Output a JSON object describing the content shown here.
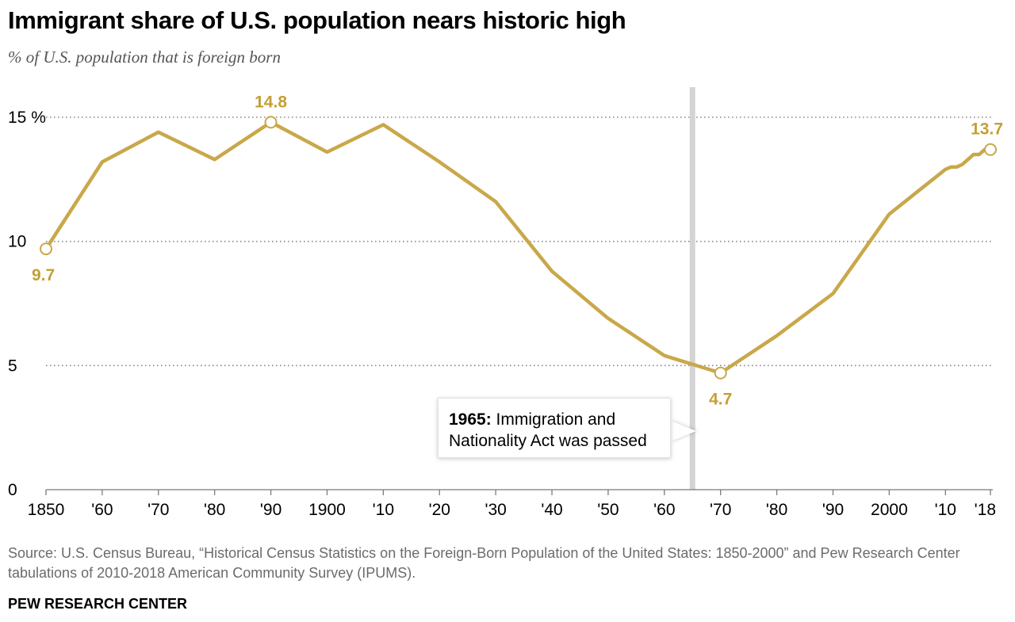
{
  "title": "Immigrant share of U.S. population nears historic high",
  "subtitle": "% of U.S. population that is foreign born",
  "source": "Source: U.S. Census Bureau, “Historical Census Statistics on the Foreign-Born Population of the United States: 1850-2000” and Pew Research Center tabulations of 2010-2018 American Community Survey (IPUMS).",
  "brand": "PEW RESEARCH CENTER",
  "annotation": {
    "year": "1965:",
    "text": " Immigration and Nationality Act was passed"
  },
  "colors": {
    "line": "#c9a84a",
    "label": "#c49f37",
    "grid": "#8a8a8a",
    "event_bar": "#d4d4d4",
    "axis_text": "#000000"
  },
  "chart_data": {
    "type": "line",
    "title": "Immigrant share of U.S. population nears historic high",
    "subtitle": "% of U.S. population that is foreign born",
    "xlabel": "",
    "ylabel": "",
    "ylim": [
      0,
      15
    ],
    "xlim": [
      1850,
      2018
    ],
    "grid": true,
    "y_ticks": [
      {
        "value": 0,
        "label": "0"
      },
      {
        "value": 5,
        "label": "5"
      },
      {
        "value": 10,
        "label": "10"
      },
      {
        "value": 15,
        "label": "15 %"
      }
    ],
    "x_ticks": [
      {
        "value": 1850,
        "label": "1850"
      },
      {
        "value": 1860,
        "label": "'60"
      },
      {
        "value": 1870,
        "label": "'70"
      },
      {
        "value": 1880,
        "label": "'80"
      },
      {
        "value": 1890,
        "label": "'90"
      },
      {
        "value": 1900,
        "label": "1900"
      },
      {
        "value": 1910,
        "label": "'10"
      },
      {
        "value": 1920,
        "label": "'20"
      },
      {
        "value": 1930,
        "label": "'30"
      },
      {
        "value": 1940,
        "label": "'40"
      },
      {
        "value": 1950,
        "label": "'50"
      },
      {
        "value": 1960,
        "label": "'60"
      },
      {
        "value": 1970,
        "label": "'70"
      },
      {
        "value": 1980,
        "label": "'80"
      },
      {
        "value": 1990,
        "label": "'90"
      },
      {
        "value": 2000,
        "label": "2000"
      },
      {
        "value": 2010,
        "label": "'10"
      },
      {
        "value": 2018,
        "label": "'18"
      }
    ],
    "event_marker": {
      "x": 1965,
      "label": "1965: Immigration and Nationality Act was passed"
    },
    "series": [
      {
        "x": [
          1850,
          1860,
          1870,
          1880,
          1890,
          1900,
          1910,
          1920,
          1930,
          1940,
          1950,
          1960,
          1970,
          1980,
          1990,
          2000,
          2010,
          2011,
          2012,
          2013,
          2014,
          2015,
          2016,
          2017,
          2018
        ],
        "values": [
          9.7,
          13.2,
          14.4,
          13.3,
          14.8,
          13.6,
          14.7,
          13.2,
          11.6,
          8.8,
          6.9,
          5.4,
          4.7,
          6.2,
          7.9,
          11.1,
          12.9,
          13.0,
          13.0,
          13.1,
          13.3,
          13.5,
          13.5,
          13.7,
          13.7
        ]
      }
    ],
    "point_labels": [
      {
        "x": 1850,
        "y": 9.7,
        "label": "9.7",
        "position": "below"
      },
      {
        "x": 1890,
        "y": 14.8,
        "label": "14.8",
        "position": "above"
      },
      {
        "x": 1970,
        "y": 4.7,
        "label": "4.7",
        "position": "below"
      },
      {
        "x": 2018,
        "y": 13.7,
        "label": "13.7",
        "position": "above"
      }
    ]
  }
}
